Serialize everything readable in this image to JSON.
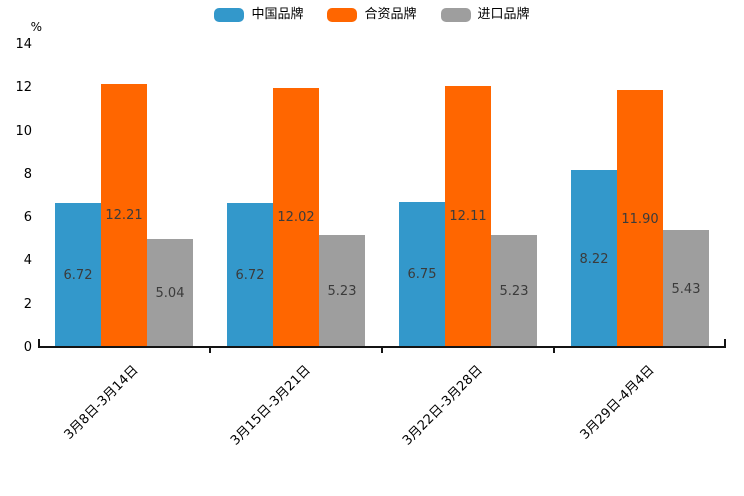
{
  "chart_data": {
    "type": "bar",
    "title": "",
    "xlabel": "",
    "ylabel": "%",
    "ylim": [
      0,
      14
    ],
    "y_ticks": [
      0,
      2,
      4,
      6,
      8,
      10,
      12,
      14
    ],
    "grid": false,
    "legend_position": "top-center",
    "value_label_position": "inside-center",
    "categories": [
      "3月8日-3月14日",
      "3月15日-3月21日",
      "3月22日-3月28日",
      "3月29日-4月4日"
    ],
    "series": [
      {
        "id": "china-brands",
        "name": "中国品牌",
        "color": "#3398cb",
        "values": [
          6.72,
          6.72,
          6.75,
          8.22
        ],
        "labels": [
          "6.72",
          "6.72",
          "6.75",
          "8.22"
        ]
      },
      {
        "id": "joint-venture-brands",
        "name": "合资品牌",
        "color": "#ff6600",
        "values": [
          12.21,
          12.02,
          12.11,
          11.9
        ],
        "labels": [
          "12.21",
          "12.02",
          "12.11",
          "11.90"
        ]
      },
      {
        "id": "imported-brands",
        "name": "进口品牌",
        "color": "#9e9e9e",
        "values": [
          5.04,
          5.23,
          5.23,
          5.43
        ],
        "labels": [
          "5.04",
          "5.23",
          "5.23",
          "5.43"
        ]
      }
    ]
  },
  "colors": {
    "axis": "#141414",
    "value_label": "#3b3b3b",
    "tick_label": "#000000",
    "background": "#ffffff"
  }
}
